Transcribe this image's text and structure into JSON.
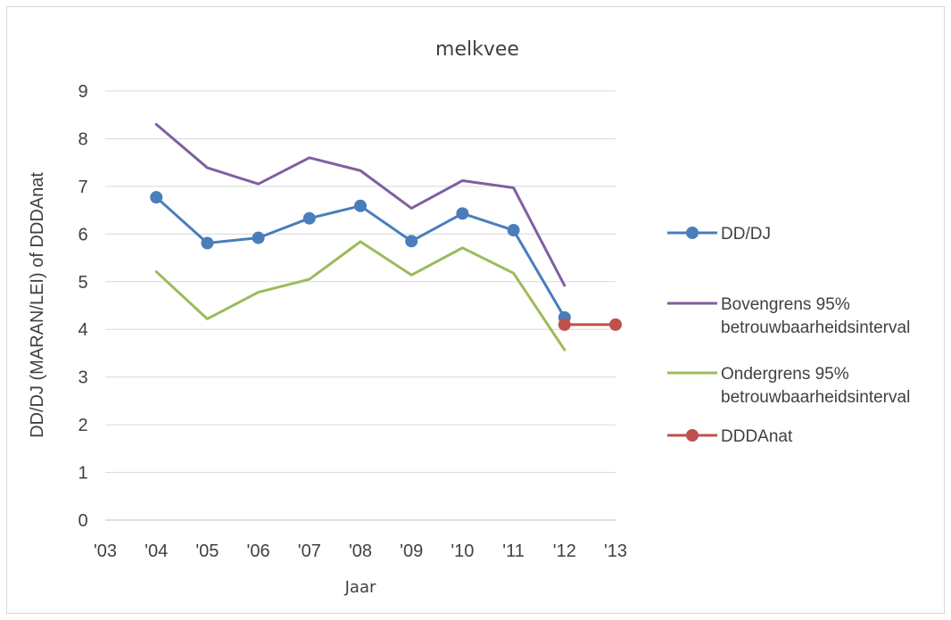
{
  "chart_data": {
    "type": "line",
    "title": "melkvee",
    "xlabel": "Jaar",
    "ylabel": "DD/DJ (MARAN/LEI) of DDDAnat",
    "categories": [
      "'03",
      "'04",
      "'05",
      "'06",
      "'07",
      "'08",
      "'09",
      "'10",
      "'11",
      "'12",
      "'13"
    ],
    "ylim": [
      0,
      9
    ],
    "yticks": [
      "0",
      "1",
      "2",
      "3",
      "4",
      "5",
      "6",
      "7",
      "8",
      "9"
    ],
    "grid": true,
    "legend_position": "right",
    "series": [
      {
        "name": "DD/DJ",
        "color": "#4a7ebb",
        "markers": true,
        "legend_lines": [
          "DD/DJ"
        ],
        "points": [
          [
            1,
            6.77
          ],
          [
            2,
            5.81
          ],
          [
            3,
            5.92
          ],
          [
            4,
            6.33
          ],
          [
            5,
            6.59
          ],
          [
            6,
            5.85
          ],
          [
            7,
            6.43
          ],
          [
            8,
            6.08
          ],
          [
            9,
            4.25
          ]
        ]
      },
      {
        "name": "Bovengrens 95% betrouwbaarheidsinterval",
        "color": "#7f5fa0",
        "markers": false,
        "legend_lines": [
          "Bovengrens 95%",
          "betrouwbaarheidsinterval"
        ],
        "points": [
          [
            1,
            8.3
          ],
          [
            2,
            7.39
          ],
          [
            3,
            7.05
          ],
          [
            4,
            7.6
          ],
          [
            5,
            7.33
          ],
          [
            6,
            6.54
          ],
          [
            7,
            7.12
          ],
          [
            8,
            6.97
          ],
          [
            9,
            4.92
          ]
        ]
      },
      {
        "name": "Ondergrens 95% betrouwbaarheidsinterval",
        "color": "#9bbb59",
        "markers": false,
        "legend_lines": [
          "Ondergrens 95%",
          "betrouwbaarheidsinterval"
        ],
        "points": [
          [
            1,
            5.21
          ],
          [
            2,
            4.22
          ],
          [
            3,
            4.78
          ],
          [
            4,
            5.05
          ],
          [
            5,
            5.84
          ],
          [
            6,
            5.14
          ],
          [
            7,
            5.71
          ],
          [
            8,
            5.18
          ],
          [
            9,
            3.57
          ]
        ]
      },
      {
        "name": "DDDAnat",
        "color": "#c0504d",
        "markers": true,
        "legend_lines": [
          "DDDAnat"
        ],
        "points": [
          [
            9,
            4.1
          ],
          [
            10,
            4.1
          ]
        ]
      }
    ]
  }
}
